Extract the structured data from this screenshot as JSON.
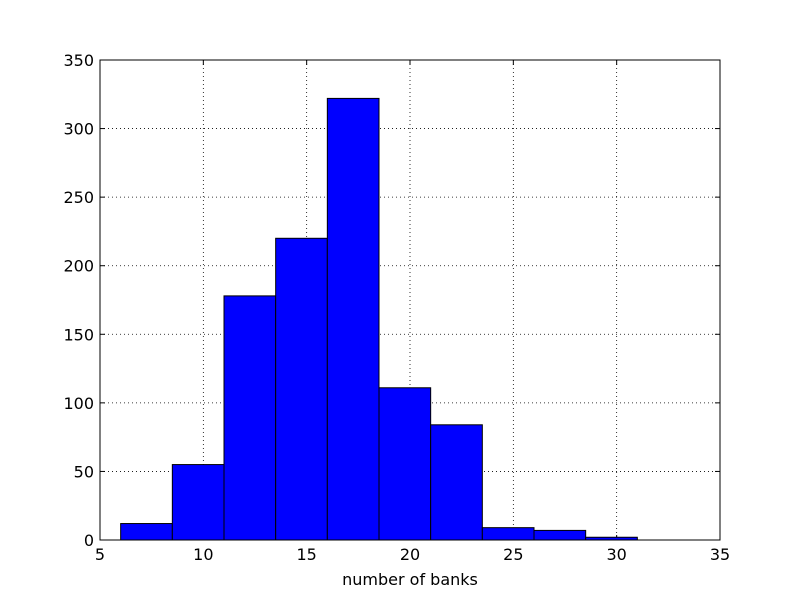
{
  "chart_data": {
    "type": "histogram",
    "x_label": "number of banks",
    "bins": [
      6,
      8.5,
      11,
      13.5,
      16,
      18.5,
      21,
      23.5,
      26,
      28.5,
      31
    ],
    "values": [
      12,
      55,
      178,
      220,
      322,
      111,
      84,
      9,
      7,
      2
    ],
    "color": "#0000ff",
    "xlim": [
      5,
      35
    ],
    "xticks": [
      5,
      10,
      15,
      20,
      25,
      30,
      35
    ],
    "ylim": [
      0,
      350
    ],
    "yticks": [
      0,
      50,
      100,
      150,
      200,
      250,
      300,
      350
    ],
    "grid": true
  }
}
